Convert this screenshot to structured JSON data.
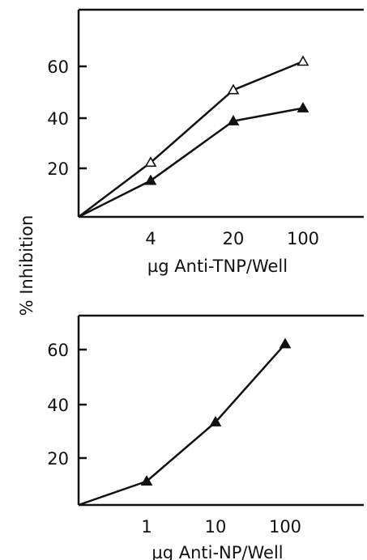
{
  "shared_ylabel": "% Inhibition",
  "chart_data": [
    {
      "type": "line",
      "title": "",
      "xlabel": "µg Anti-TNP/Well",
      "ylabel": "% Inhibition",
      "x_scale": "log",
      "x_ticks": [
        4,
        20,
        100
      ],
      "x_tick_labels": [
        "4",
        "20",
        "100"
      ],
      "y_ticks": [
        20,
        40,
        60
      ],
      "y_tick_labels": [
        "20",
        "40",
        "60"
      ],
      "ylim": [
        0,
        80
      ],
      "grid": false,
      "series": [
        {
          "marker": "open-triangle",
          "points": [
            [
              0,
              0
            ],
            [
              4,
              21
            ],
            [
              20,
              49
            ],
            [
              100,
              60
            ]
          ]
        },
        {
          "marker": "filled-triangle",
          "points": [
            [
              0,
              0
            ],
            [
              4,
              14
            ],
            [
              20,
              37
            ],
            [
              100,
              42
            ]
          ]
        }
      ]
    },
    {
      "type": "line",
      "title": "",
      "xlabel": "µg Anti-NP/Well",
      "ylabel": "% Inhibition",
      "x_scale": "log",
      "x_ticks": [
        1,
        10,
        100
      ],
      "x_tick_labels": [
        "1",
        "10",
        "100"
      ],
      "y_ticks": [
        20,
        40,
        60
      ],
      "y_tick_labels": [
        "20",
        "40",
        "60"
      ],
      "ylim": [
        0,
        80
      ],
      "grid": false,
      "series": [
        {
          "marker": "filled-triangle",
          "points": [
            [
              0,
              0
            ],
            [
              1,
              10
            ],
            [
              10,
              35
            ],
            [
              100,
              68
            ]
          ]
        }
      ]
    }
  ]
}
